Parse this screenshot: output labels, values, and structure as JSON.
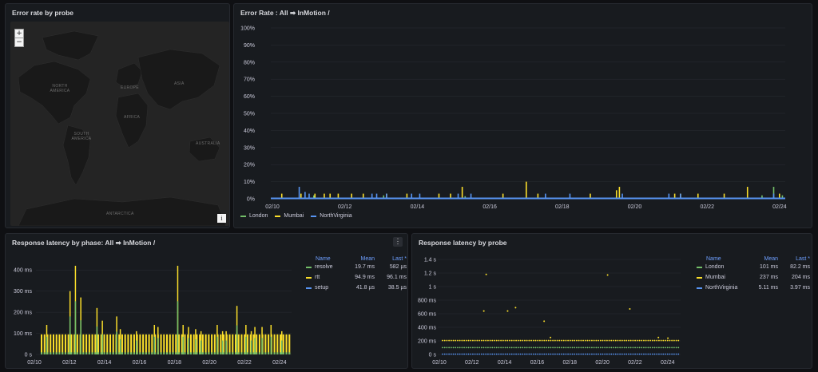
{
  "colors": {
    "london": "#73bf69",
    "mumbai": "#fade2a",
    "northvirginia": "#5794f2",
    "bg": "#181b1f"
  },
  "map_panel": {
    "title": "Error rate by probe",
    "zoom_in": "+",
    "zoom_out": "−",
    "info": "i",
    "labels": [
      "NORTH AMERICA",
      "EUROPE",
      "ASIA",
      "AFRICA",
      "SOUTH AMERICA",
      "AUSTRALIA",
      "ANTARCTICA"
    ]
  },
  "error_panel": {
    "title": "Error Rate : All ➡ InMotion /",
    "legend": [
      "London",
      "Mumbai",
      "NorthVirginia"
    ]
  },
  "phase_panel": {
    "title": "Response latency by phase: All ➡ InMotion /",
    "menu": "⋮",
    "table": {
      "headers": [
        "Name",
        "Mean",
        "Last *"
      ],
      "rows": [
        {
          "name": "resolve",
          "mean": "19.7 ms",
          "last": "582 µs"
        },
        {
          "name": "rtt",
          "mean": "94.9 ms",
          "last": "96.1 ms"
        },
        {
          "name": "setup",
          "mean": "41.8 µs",
          "last": "38.5 µs"
        }
      ]
    }
  },
  "probe_panel": {
    "title": "Response latency by probe",
    "table": {
      "headers": [
        "Name",
        "Mean",
        "Last *"
      ],
      "rows": [
        {
          "name": "London",
          "mean": "101 ms",
          "last": "82.2 ms"
        },
        {
          "name": "Mumbai",
          "mean": "237 ms",
          "last": "204 ms"
        },
        {
          "name": "NorthVirginia",
          "mean": "5.11 ms",
          "last": "3.97 ms"
        }
      ]
    }
  },
  "chart_data": [
    {
      "type": "bar",
      "title": "Error Rate : All ➡ InMotion /",
      "x_ticks": [
        "02/10",
        "02/12",
        "02/14",
        "02/16",
        "02/18",
        "02/20",
        "02/22",
        "02/24"
      ],
      "y_ticks": [
        "0%",
        "10%",
        "20%",
        "30%",
        "40%",
        "50%",
        "60%",
        "70%",
        "80%",
        "90%",
        "100%"
      ],
      "ylim": [
        0,
        100
      ],
      "series": [
        {
          "name": "London",
          "spikes": [
            [
              0.7,
              2
            ],
            [
              1.9,
              2
            ],
            [
              3.3,
              1.5
            ],
            [
              5.9,
              1.5
            ],
            [
              8.4,
              2
            ],
            [
              8.6,
              7
            ],
            [
              8.75,
              2
            ]
          ]
        },
        {
          "name": "Mumbai",
          "spikes": [
            [
              0.15,
              3
            ],
            [
              0.48,
              3
            ],
            [
              0.72,
              3
            ],
            [
              0.88,
              3
            ],
            [
              0.98,
              3
            ],
            [
              1.12,
              3
            ],
            [
              1.35,
              3
            ],
            [
              1.55,
              3
            ],
            [
              1.95,
              3
            ],
            [
              2.3,
              3
            ],
            [
              2.85,
              3
            ],
            [
              3.05,
              3
            ],
            [
              3.25,
              7
            ],
            [
              3.95,
              3
            ],
            [
              4.35,
              10
            ],
            [
              4.55,
              3
            ],
            [
              5.45,
              3
            ],
            [
              5.9,
              5
            ],
            [
              5.95,
              7
            ],
            [
              6.9,
              3
            ],
            [
              7.0,
              3
            ],
            [
              7.3,
              3
            ],
            [
              7.75,
              3
            ],
            [
              8.15,
              7
            ],
            [
              8.7,
              3
            ]
          ]
        },
        {
          "name": "NorthVirginia",
          "spikes": [
            [
              0.45,
              7
            ],
            [
              0.55,
              4
            ],
            [
              0.62,
              3
            ],
            [
              1.7,
              3
            ],
            [
              1.78,
              3
            ],
            [
              1.95,
              3
            ],
            [
              2.38,
              3
            ],
            [
              2.52,
              3
            ],
            [
              3.18,
              3
            ],
            [
              3.4,
              3
            ],
            [
              4.68,
              3
            ],
            [
              5.1,
              3
            ],
            [
              6.0,
              3
            ],
            [
              6.8,
              3
            ],
            [
              7.0,
              3
            ],
            [
              8.6,
              3
            ]
          ]
        }
      ]
    },
    {
      "type": "bar",
      "title": "Response latency by phase: All ➡ InMotion /",
      "x_ticks": [
        "02/10",
        "02/12",
        "02/14",
        "02/16",
        "02/18",
        "02/20",
        "02/22",
        "02/24"
      ],
      "y_ticks": [
        "0 s",
        "100 ms",
        "200 ms",
        "300 ms",
        "400 ms"
      ],
      "ylim": [
        0,
        450
      ],
      "base_values": {
        "resolve": 10,
        "rtt": 95,
        "setup": 0.04
      },
      "spikes": [
        [
          0.3,
          140
        ],
        [
          1.6,
          300
        ],
        [
          1.9,
          420
        ],
        [
          2.2,
          270
        ],
        [
          3.1,
          220
        ],
        [
          3.4,
          160
        ],
        [
          4.2,
          180
        ],
        [
          4.4,
          120
        ],
        [
          5.3,
          110
        ],
        [
          6.3,
          140
        ],
        [
          6.5,
          130
        ],
        [
          7.6,
          420
        ],
        [
          7.9,
          140
        ],
        [
          8.2,
          130
        ],
        [
          8.6,
          120
        ],
        [
          8.9,
          110
        ],
        [
          9.8,
          140
        ],
        [
          10.1,
          110
        ],
        [
          10.3,
          110
        ],
        [
          10.9,
          230
        ],
        [
          11.4,
          140
        ],
        [
          11.7,
          110
        ],
        [
          11.9,
          130
        ],
        [
          12.3,
          130
        ],
        [
          12.8,
          140
        ],
        [
          13.4,
          110
        ]
      ]
    },
    {
      "type": "scatter",
      "title": "Response latency by probe",
      "x_ticks": [
        "02/10",
        "02/12",
        "02/14",
        "02/16",
        "02/18",
        "02/20",
        "02/22",
        "02/24"
      ],
      "y_ticks": [
        "0 s",
        "200 ms",
        "400 ms",
        "600 ms",
        "800 ms",
        "1 s",
        "1.2 s",
        "1.4 s"
      ],
      "ylim": [
        0,
        1400
      ],
      "series": [
        {
          "name": "London",
          "base": 101
        },
        {
          "name": "Mumbai",
          "base": 205,
          "outliers": [
            [
              2.6,
              640
            ],
            [
              2.75,
              1180
            ],
            [
              4.1,
              640
            ],
            [
              4.6,
              690
            ],
            [
              6.4,
              490
            ],
            [
              6.8,
              250
            ],
            [
              10.4,
              1170
            ],
            [
              11.8,
              670
            ],
            [
              13.6,
              250
            ],
            [
              14.2,
              240
            ]
          ]
        },
        {
          "name": "NorthVirginia",
          "base": 4
        }
      ]
    }
  ]
}
